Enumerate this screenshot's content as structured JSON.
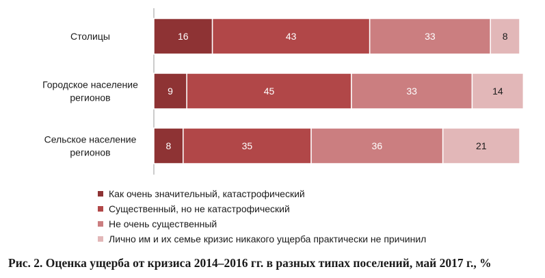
{
  "chart_data": {
    "type": "bar",
    "orientation": "horizontal",
    "stacked": true,
    "categories": [
      [
        "Столицы"
      ],
      [
        "Городское население",
        "регионов"
      ],
      [
        "Сельское население",
        "регионов"
      ]
    ],
    "series": [
      {
        "name": "Как очень значительный, катастрофический",
        "values": [
          16,
          9,
          8
        ],
        "color": "#8e3334",
        "label_color": "#ffffff"
      },
      {
        "name": "Существенный, но не катастрофический",
        "values": [
          43,
          45,
          35
        ],
        "color": "#b14748",
        "label_color": "#ffffff"
      },
      {
        "name": "Не очень существенный",
        "values": [
          33,
          33,
          36
        ],
        "color": "#cb7e80",
        "label_color": "#ffffff"
      },
      {
        "name": "Лично им и их семье кризис никакого ущерба практически не причинил",
        "values": [
          8,
          14,
          21
        ],
        "color": "#e2b7b8",
        "label_color": "#1a1a1a"
      }
    ],
    "xlim": [
      0,
      100
    ],
    "grid": false,
    "legend_position": "bottom"
  },
  "caption": "Рис. 2. Оценка ущерба от кризиса 2014–2016  гг. в разных типах поселений, май 2017  г., %"
}
